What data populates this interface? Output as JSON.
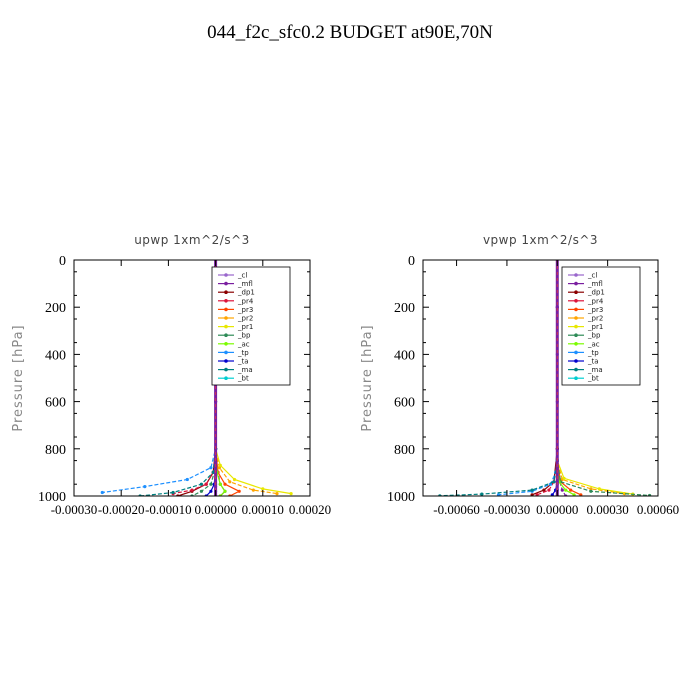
{
  "figure_title": "044_f2c_sfc0.2  BUDGET at90E,70N",
  "chart_data": [
    {
      "type": "line",
      "title": "upwp   1xm^2/s^3",
      "ylabel": "Pressure [hPa]",
      "xlim": [
        -0.0003,
        0.0002
      ],
      "ylim": [
        1000,
        0
      ],
      "y_ticks": [
        0,
        200,
        400,
        600,
        800,
        1000
      ],
      "y_tick_labels": [
        "0",
        "200",
        "400",
        "600",
        "800",
        "1000"
      ],
      "x_ticks": [
        -0.0003,
        -0.0002,
        -0.0001,
        0.0,
        0.0001,
        0.0002
      ],
      "x_tick_labels": [
        "-0.00030",
        "-0.00020",
        "-0.00010",
        "0.00000",
        "0.00010",
        "0.00020"
      ],
      "legend_position": "top-right",
      "series": [
        {
          "name": "_cl",
          "color": "#9966cc",
          "x": [
            0,
            0,
            0,
            0,
            0,
            0,
            0,
            0
          ],
          "y": [
            0,
            200,
            400,
            600,
            800,
            900,
            960,
            1000
          ]
        },
        {
          "name": "_mfl",
          "color": "#7a1fa0",
          "x": [
            0,
            0,
            0,
            2e-06,
            5e-06,
            1e-05,
            2e-05,
            1e-05
          ],
          "y": [
            0,
            200,
            600,
            850,
            900,
            950,
            980,
            1000
          ]
        },
        {
          "name": "_dp1",
          "color": "#8b0000",
          "x": [
            0,
            0,
            0,
            -5e-06,
            -2e-05,
            -5e-05,
            -8e-05
          ],
          "y": [
            0,
            400,
            800,
            900,
            950,
            980,
            1000
          ]
        },
        {
          "name": "_pr4",
          "color": "#dc143c",
          "x": [
            0,
            0,
            -5e-06,
            -2e-05,
            -5e-05,
            -9e-05
          ],
          "y": [
            0,
            800,
            900,
            950,
            975,
            990
          ]
        },
        {
          "name": "_pr3",
          "color": "#ff4500",
          "x": [
            0,
            0,
            5e-06,
            2e-05,
            5e-05,
            3e-05
          ],
          "y": [
            0,
            800,
            900,
            950,
            980,
            1000
          ]
        },
        {
          "name": "_pr2",
          "color": "#ffa500",
          "x": [
            0,
            0,
            8e-06,
            3e-05,
            8e-05,
            0.00013
          ],
          "y": [
            0,
            800,
            880,
            940,
            975,
            990
          ]
        },
        {
          "name": "_pr1",
          "color": "#e8e800",
          "x": [
            0,
            0,
            1e-05,
            4e-05,
            0.0001,
            0.00016
          ],
          "y": [
            0,
            800,
            870,
            930,
            970,
            990
          ]
        },
        {
          "name": "_bp",
          "color": "#2e8b57",
          "x": [
            0,
            0,
            -3e-06,
            -1e-05,
            -3e-05,
            -5e-05
          ],
          "y": [
            0,
            800,
            900,
            950,
            980,
            1000
          ]
        },
        {
          "name": "_ac",
          "color": "#7cfc00",
          "x": [
            0,
            0,
            3e-06,
            1e-05,
            2e-05,
            1e-05
          ],
          "y": [
            0,
            800,
            900,
            950,
            980,
            1000
          ]
        },
        {
          "name": "_tp",
          "color": "#1e90ff",
          "x": [
            0,
            0,
            -1e-05,
            -6e-05,
            -0.00015,
            -0.00024
          ],
          "y": [
            0,
            800,
            880,
            930,
            960,
            985
          ]
        },
        {
          "name": "_ta",
          "color": "#0000cd",
          "x": [
            0,
            0,
            0,
            -3e-06,
            -1e-05,
            -2e-05
          ],
          "y": [
            0,
            800,
            900,
            950,
            980,
            1000
          ]
        },
        {
          "name": "_ma",
          "color": "#008080",
          "x": [
            0,
            0,
            -5e-06,
            -3e-05,
            -9e-05,
            -0.00016
          ],
          "y": [
            0,
            800,
            900,
            950,
            985,
            1000
          ]
        },
        {
          "name": "_bt",
          "color": "#00ced1",
          "x": [
            0,
            0,
            0,
            0,
            0,
            0
          ],
          "y": [
            0,
            800,
            900,
            950,
            980,
            1000
          ]
        }
      ]
    },
    {
      "type": "line",
      "title": "vpwp   1xm^2/s^3",
      "ylabel": "Pressure [hPa]",
      "xlim": [
        -0.0008,
        0.0006
      ],
      "ylim": [
        1000,
        0
      ],
      "y_ticks": [
        0,
        200,
        400,
        600,
        800,
        1000
      ],
      "y_tick_labels": [
        "0",
        "200",
        "400",
        "600",
        "800",
        "1000"
      ],
      "x_ticks": [
        -0.0006,
        -0.0003,
        0.0,
        0.0003,
        0.0006
      ],
      "x_tick_labels": [
        "-0.00060",
        "-0.00030",
        "0.00000",
        "0.00030",
        "0.00060"
      ],
      "legend_position": "top-right",
      "series": [
        {
          "name": "_cl",
          "color": "#9966cc",
          "x": [
            0,
            0,
            0,
            0,
            0,
            0,
            0
          ],
          "y": [
            0,
            200,
            400,
            600,
            800,
            950,
            1000
          ]
        },
        {
          "name": "_mfl",
          "color": "#7a1fa0",
          "x": [
            0,
            0,
            0,
            1e-05,
            3e-05,
            5e-05
          ],
          "y": [
            0,
            200,
            800,
            930,
            975,
            1000
          ]
        },
        {
          "name": "_dp1",
          "color": "#8b0000",
          "x": [
            0,
            0,
            -2e-05,
            -8e-05,
            -0.00015
          ],
          "y": [
            0,
            800,
            940,
            975,
            995
          ]
        },
        {
          "name": "_pr4",
          "color": "#dc143c",
          "x": [
            0,
            0,
            -2e-05,
            -5e-05,
            -0.00012
          ],
          "y": [
            0,
            850,
            940,
            975,
            995
          ]
        },
        {
          "name": "_pr3",
          "color": "#ff4500",
          "x": [
            0,
            0,
            2e-05,
            8e-05,
            0.00014
          ],
          "y": [
            0,
            850,
            940,
            975,
            995
          ]
        },
        {
          "name": "_pr2",
          "color": "#ffa500",
          "x": [
            0,
            0,
            3e-05,
            0.0002,
            0.0004
          ],
          "y": [
            0,
            850,
            930,
            970,
            990
          ]
        },
        {
          "name": "_pr1",
          "color": "#e8e800",
          "x": [
            0,
            0,
            4e-05,
            0.00025,
            0.00045
          ],
          "y": [
            0,
            850,
            925,
            970,
            992
          ]
        },
        {
          "name": "_bp",
          "color": "#2e8b57",
          "x": [
            0,
            0,
            2e-05,
            0.0002,
            0.00055
          ],
          "y": [
            0,
            850,
            940,
            980,
            998
          ]
        },
        {
          "name": "_ac",
          "color": "#7cfc00",
          "x": [
            0,
            0,
            1e-05,
            5e-05,
            0.0001
          ],
          "y": [
            0,
            850,
            940,
            975,
            995
          ]
        },
        {
          "name": "_tp",
          "color": "#1e90ff",
          "x": [
            0,
            0,
            -1e-05,
            -4e-05,
            -0.00015,
            -0.00035
          ],
          "y": [
            0,
            850,
            900,
            950,
            980,
            995
          ]
        },
        {
          "name": "_ta",
          "color": "#0000cd",
          "x": [
            0,
            0,
            0,
            -1e-05,
            -3e-05
          ],
          "y": [
            0,
            850,
            940,
            975,
            995
          ]
        },
        {
          "name": "_ma",
          "color": "#008080",
          "x": [
            0,
            0,
            -2e-05,
            -0.00015,
            -0.00045,
            -0.0007
          ],
          "y": [
            0,
            850,
            940,
            975,
            992,
            999
          ]
        },
        {
          "name": "_bt",
          "color": "#00ced1",
          "x": [
            0,
            0,
            0,
            0,
            0
          ],
          "y": [
            0,
            850,
            940,
            975,
            1000
          ]
        }
      ]
    }
  ]
}
